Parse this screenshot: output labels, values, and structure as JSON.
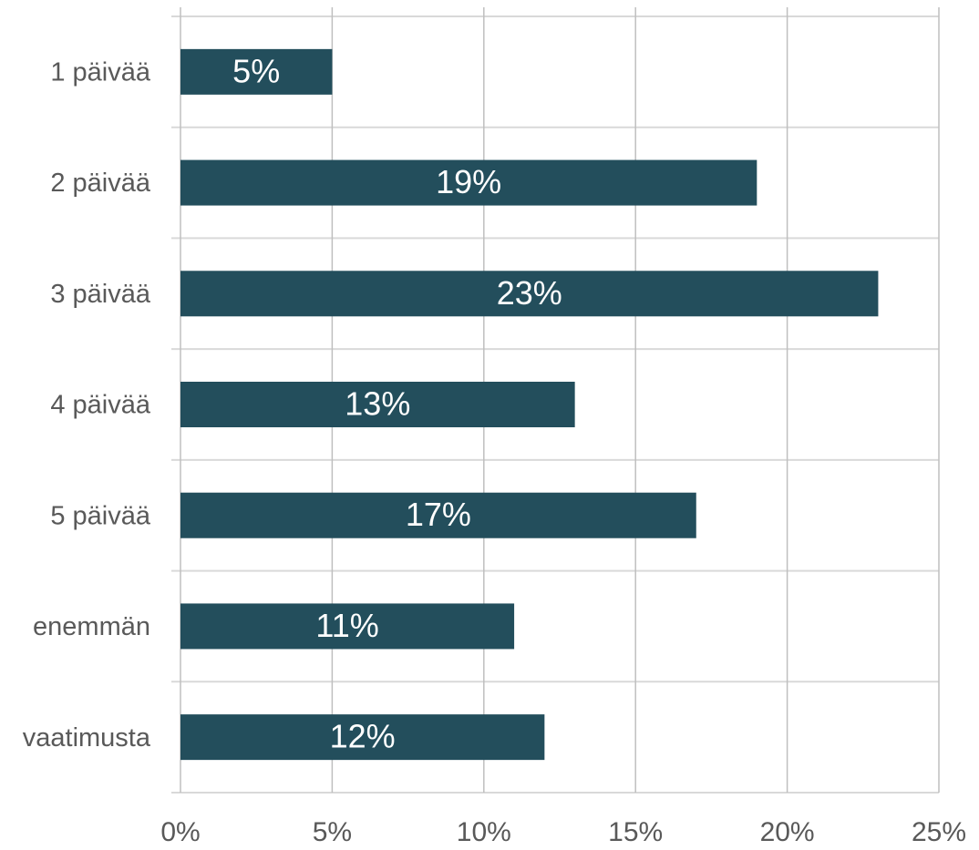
{
  "chart_data": {
    "type": "bar",
    "orientation": "horizontal",
    "categories": [
      "1 päivää",
      "2 päivää",
      "3 päivää",
      "4 päivää",
      "5 päivää",
      "enemmän",
      "vaatimusta"
    ],
    "values": [
      5,
      19,
      23,
      13,
      17,
      11,
      12
    ],
    "value_labels": [
      "5%",
      "19%",
      "23%",
      "13%",
      "17%",
      "11%",
      "12%"
    ],
    "color": "#234e5c",
    "xlim": [
      0,
      25
    ],
    "xticks": [
      {
        "value": 0,
        "label": "0%"
      },
      {
        "value": 5,
        "label": "5%"
      },
      {
        "value": 10,
        "label": "10%"
      },
      {
        "value": 15,
        "label": "15%"
      },
      {
        "value": 20,
        "label": "20%"
      },
      {
        "value": 25,
        "label": "25%"
      }
    ],
    "grid": true
  }
}
